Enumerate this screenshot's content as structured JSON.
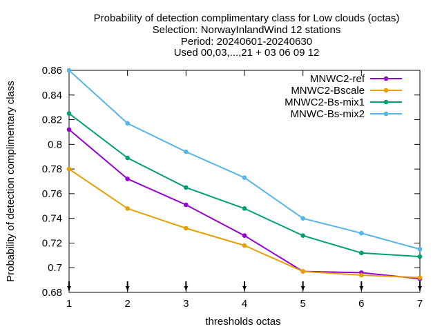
{
  "chart_data": {
    "type": "line",
    "title_lines": [
      "Probability of detection complimentary class  for Low clouds (octas)",
      "Selection: NorwayInlandWind     12 stations",
      "Period: 20240601-20240630",
      "Used 00,03,...,21 + 03 06 09 12"
    ],
    "xlabel": "thresholds octas",
    "ylabel": "Probability of detection complimentary class",
    "x": [
      1,
      2,
      3,
      4,
      5,
      6,
      7
    ],
    "xlim": [
      1,
      7
    ],
    "ylim": [
      0.68,
      0.86
    ],
    "xticks": [
      "1",
      "2",
      "3",
      "4",
      "5",
      "6",
      "7"
    ],
    "yticks": [
      "0.68",
      "0.7",
      "0.72",
      "0.74",
      "0.76",
      "0.78",
      "0.8",
      "0.82",
      "0.84",
      "0.86"
    ],
    "ytick_values": [
      0.68,
      0.7,
      0.72,
      0.74,
      0.76,
      0.78,
      0.8,
      0.82,
      0.84,
      0.86
    ],
    "grid": false,
    "legend_position": "top-right",
    "series": [
      {
        "name": "MNWC2-ref",
        "color": "#9400d3",
        "values": [
          0.812,
          0.772,
          0.751,
          0.726,
          0.697,
          0.696,
          0.691
        ]
      },
      {
        "name": "MNWC2-Bscale",
        "color": "#e69f00",
        "values": [
          0.78,
          0.748,
          0.732,
          0.718,
          0.697,
          0.694,
          0.692
        ]
      },
      {
        "name": "MNWC2-Bs-mix1",
        "color": "#009e73",
        "values": [
          0.825,
          0.789,
          0.765,
          0.748,
          0.726,
          0.712,
          0.709
        ]
      },
      {
        "name": "MNWC-Bs-mix2",
        "color": "#56b4e9",
        "values": [
          0.86,
          0.817,
          0.794,
          0.773,
          0.74,
          0.728,
          0.715
        ]
      }
    ],
    "sample_markers_x": [
      1,
      2,
      3,
      4,
      5,
      6,
      7
    ]
  }
}
